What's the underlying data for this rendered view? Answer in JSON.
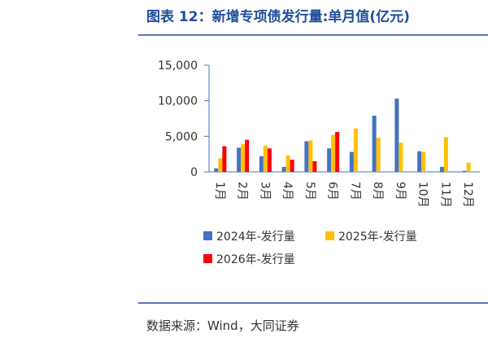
{
  "chart_data": {
    "type": "bar",
    "title": "图表 12：新增专项债发行量:单月值(亿元)",
    "source": "数据来源：Wind，大同证券",
    "categories": [
      "1月",
      "2月",
      "3月",
      "4月",
      "5月",
      "6月",
      "7月",
      "8月",
      "9月",
      "10月",
      "11月",
      "12月"
    ],
    "series": [
      {
        "name": "2024年-发行量",
        "color": "#4472c4",
        "values": [
          500,
          3400,
          2200,
          700,
          4300,
          3300,
          2800,
          7900,
          10300,
          2900,
          700,
          150
        ]
      },
      {
        "name": "2025年-发行量",
        "color": "#ffc000",
        "values": [
          1900,
          3900,
          3700,
          2300,
          4400,
          5200,
          6100,
          4800,
          4100,
          2800,
          4900,
          1300
        ]
      },
      {
        "name": "2026年-发行量",
        "color": "#ff0000",
        "values": [
          3600,
          4500,
          3300,
          1700,
          1500,
          5600,
          null,
          null,
          null,
          null,
          null,
          null
        ]
      }
    ],
    "ylim": [
      0,
      15000
    ],
    "yticks": [
      0,
      {
        "value": 5000,
        "label": "5,000"
      },
      {
        "value": 10000,
        "label": "10,000"
      },
      {
        "value": 15000,
        "label": "15,000"
      }
    ]
  }
}
